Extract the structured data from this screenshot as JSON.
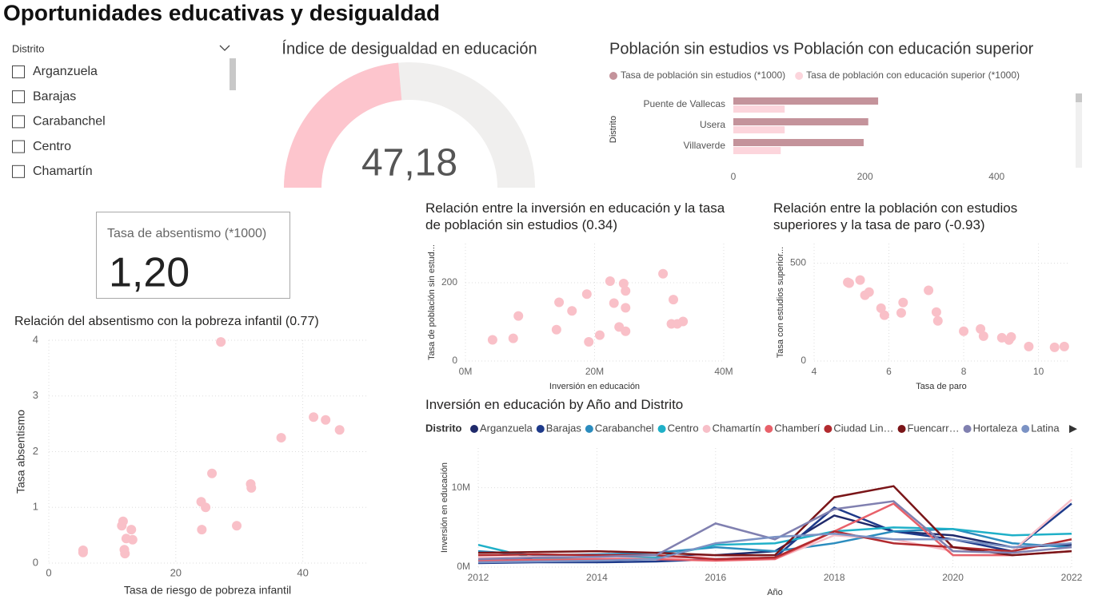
{
  "header": {
    "title": "Oportunidades educativas y desigualdad"
  },
  "slicer": {
    "title": "Distrito",
    "items": [
      "Arganzuela",
      "Barajas",
      "Carabanchel",
      "Centro",
      "Chamartín"
    ]
  },
  "chart_data": [
    {
      "type": "gauge",
      "title": "Índice de desigualdad en educación",
      "value": 47.18,
      "value_label": "47,18",
      "ylim": [
        0,
        100
      ],
      "color": "#fdc5cd"
    },
    {
      "type": "card",
      "title": "Tasa de absentismo (*1000)",
      "value": 1.2,
      "value_label": "1,20"
    },
    {
      "type": "hbar",
      "title": "Población sin estudios vs Población con educación superior",
      "y_label": "Distrito",
      "categories": [
        "Puente de Vallecas",
        "Usera",
        "Villaverde"
      ],
      "series": [
        {
          "name": "Tasa de población sin estudios (*1000)",
          "color": "#c4939b",
          "values": [
            220,
            205,
            198
          ]
        },
        {
          "name": "Tasa de población con educación superior (*1000)",
          "color": "#fcd5dc",
          "values": [
            78,
            78,
            72
          ]
        }
      ],
      "xlim": [
        0,
        520
      ],
      "xticks": [
        0,
        200,
        400
      ],
      "legend": "top"
    },
    {
      "type": "scatter",
      "title": "Relación entre la inversión en educación y la tasa de población sin estudios (0.34)",
      "x_label": "Inversión en educación",
      "y_label": "Tasa de población sin estud...",
      "color": "#f9c0c8",
      "x": [
        4200000,
        7400000,
        8200000,
        14100000,
        14500000,
        16500000,
        18800000,
        19100000,
        20800000,
        22400000,
        23000000,
        23800000,
        24500000,
        24800000,
        24800000,
        24800000,
        30600000,
        31900000,
        32200000,
        32800000,
        33700000
      ],
      "values": [
        54,
        58,
        115,
        80,
        150,
        128,
        171,
        49,
        66,
        204,
        148,
        87,
        198,
        179,
        136,
        76,
        223,
        95,
        157,
        95,
        101
      ],
      "xlim": [
        0,
        40000000
      ],
      "ylim": [
        0,
        300
      ],
      "xticks": [
        {
          "value": 0,
          "label": "0M"
        },
        {
          "value": 20000000,
          "label": "20M"
        },
        {
          "value": 40000000,
          "label": "40M"
        }
      ],
      "yticks": [
        0,
        200
      ],
      "grid": true
    },
    {
      "type": "scatter",
      "title": "Relación entre la población con estudios superiores y la tasa de paro (-0.93)",
      "x_label": "Tasa de paro",
      "y_label": "Tasa con estudios superior...",
      "color": "#f9c0c8",
      "x": [
        4.9,
        4.94,
        5.23,
        5.36,
        5.47,
        5.79,
        5.88,
        6.33,
        6.38,
        7.06,
        7.27,
        7.31,
        8.0,
        8.45,
        8.53,
        9.02,
        9.21,
        9.27,
        9.74,
        10.43,
        10.69
      ],
      "values": [
        402,
        398,
        414,
        336,
        352,
        270,
        234,
        246,
        299,
        361,
        250,
        205,
        152,
        164,
        127,
        119,
        107,
        123,
        74,
        70,
        74
      ],
      "xlim": [
        4,
        10.8
      ],
      "ylim": [
        0,
        600
      ],
      "xticks": [
        4,
        6,
        8,
        10
      ],
      "yticks": [
        0,
        500
      ],
      "grid": true
    },
    {
      "type": "scatter",
      "title": "Relación del absentismo con la pobreza infantil (0.77)",
      "x_label": "Tasa de riesgo de pobreza infantil",
      "y_label": "Tasa absentismo",
      "color": "#f9c0c8",
      "x": [
        5.4,
        5.4,
        11.5,
        11.7,
        11.9,
        12.0,
        12.2,
        13.0,
        13.2,
        24.0,
        24.1,
        24.7,
        25.7,
        27.1,
        29.6,
        31.8,
        31.9,
        36.6,
        41.7,
        43.6,
        45.8
      ],
      "values": [
        0.23,
        0.19,
        0.67,
        0.75,
        0.24,
        0.17,
        0.44,
        0.6,
        0.42,
        1.1,
        0.6,
        1.0,
        1.61,
        3.97,
        0.67,
        1.42,
        1.35,
        2.25,
        2.62,
        2.57,
        2.39
      ],
      "xlim": [
        0,
        50
      ],
      "ylim": [
        0,
        4
      ],
      "xticks": [
        0,
        20,
        40
      ],
      "yticks": [
        0,
        1,
        2,
        3,
        4
      ],
      "grid": true
    },
    {
      "type": "line",
      "title": "Inversión en educación by Año and Distrito",
      "legend_title": "Distrito",
      "x_label": "Año",
      "y_label": "Inversión en educación",
      "x": [
        2012,
        2013,
        2014,
        2015,
        2016,
        2017,
        2018,
        2019,
        2020,
        2021,
        2022
      ],
      "series": [
        {
          "name": "Arganzuela",
          "color": "#1f2a6b",
          "values": [
            1000000,
            1000000,
            1100000,
            1200000,
            1500000,
            2000000,
            6500000,
            4500000,
            4000000,
            2500000,
            2800000
          ]
        },
        {
          "name": "Barajas",
          "color": "#1e3a8a",
          "values": [
            500000,
            600000,
            600000,
            700000,
            1000000,
            1200000,
            7500000,
            4500000,
            3500000,
            2000000,
            8000000
          ]
        },
        {
          "name": "Carabanchel",
          "color": "#2b8cbe",
          "values": [
            2000000,
            1500000,
            1600000,
            1800000,
            2500000,
            2000000,
            3000000,
            4500000,
            4800000,
            3000000,
            2500000
          ]
        },
        {
          "name": "Centro",
          "color": "#1fb0c8",
          "values": [
            2800000,
            1000000,
            1000000,
            1200000,
            2800000,
            3000000,
            4500000,
            5000000,
            4800000,
            4000000,
            4200000
          ]
        },
        {
          "name": "Chamartín",
          "color": "#f7bfc8",
          "values": [
            1200000,
            1300000,
            1200000,
            1000000,
            1500000,
            1000000,
            4000000,
            3500000,
            2000000,
            2000000,
            8500000
          ]
        },
        {
          "name": "Chamberí",
          "color": "#e8616a",
          "values": [
            800000,
            900000,
            1000000,
            1000000,
            800000,
            1000000,
            4500000,
            8000000,
            1500000,
            1500000,
            2000000
          ]
        },
        {
          "name": "Ciudad Lin…",
          "color": "#b22a2e",
          "values": [
            1500000,
            1600000,
            1500000,
            1500000,
            1000000,
            1200000,
            4500000,
            3000000,
            2500000,
            2000000,
            3500000
          ]
        },
        {
          "name": "Fuencarr…",
          "color": "#7a1518",
          "values": [
            1800000,
            1900000,
            2000000,
            1800000,
            1500000,
            1500000,
            8800000,
            10200000,
            2500000,
            1500000,
            2000000
          ]
        },
        {
          "name": "Hortaleza",
          "color": "#8080b0",
          "values": [
            1000000,
            1200000,
            1300000,
            1500000,
            5500000,
            3500000,
            7300000,
            8300000,
            2000000,
            1800000,
            2500000
          ]
        },
        {
          "name": "Latina",
          "color": "#7b92c4",
          "values": [
            600000,
            700000,
            800000,
            1000000,
            3000000,
            3800000,
            4200000,
            3500000,
            3500000,
            2500000,
            3000000
          ]
        }
      ],
      "xlim": [
        2012,
        2022
      ],
      "ylim": [
        0,
        15000000
      ],
      "xticks": [
        2012,
        2014,
        2016,
        2018,
        2020,
        2022
      ],
      "yticks": [
        {
          "value": 0,
          "label": "0M"
        },
        {
          "value": 10000000,
          "label": "10M"
        }
      ],
      "grid": true
    }
  ]
}
